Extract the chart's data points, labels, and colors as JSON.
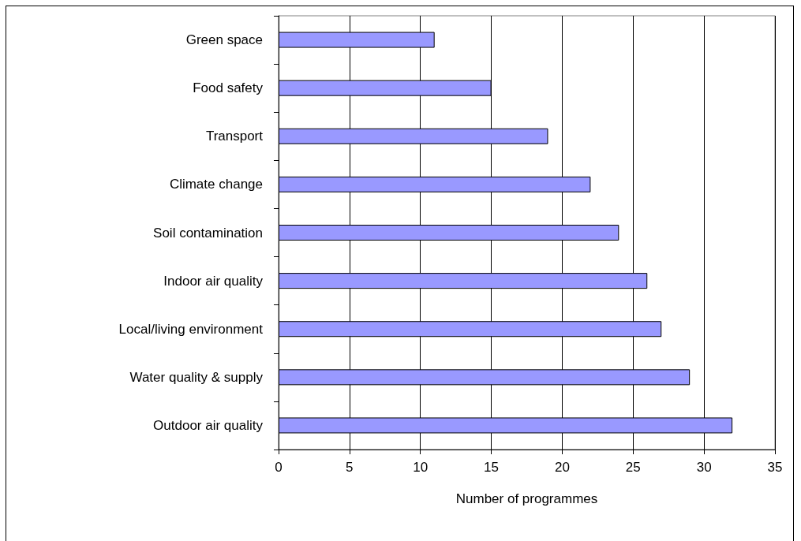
{
  "chart_data": {
    "type": "bar",
    "orientation": "horizontal",
    "xlabel": "Number of programmes",
    "categories": [
      "Green space",
      "Food safety",
      "Transport",
      "Climate change",
      "Soil contamination",
      "Indoor air quality",
      "Local/living environment",
      "Water quality & supply",
      "Outdoor air quality"
    ],
    "values": [
      11,
      15,
      19,
      22,
      24,
      26,
      27,
      29,
      32
    ],
    "color": "#9999ff",
    "xlim": [
      0,
      35
    ],
    "xticks": [
      0,
      5,
      10,
      15,
      20,
      25,
      30,
      35
    ],
    "grid": "x"
  }
}
